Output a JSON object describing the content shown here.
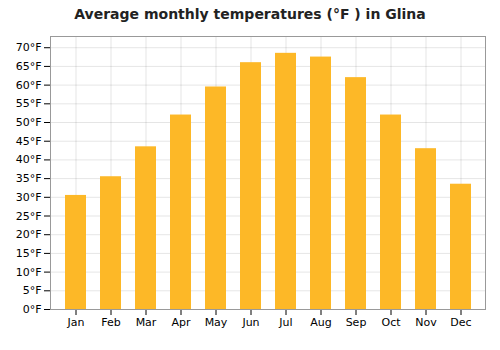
{
  "chart_data": {
    "type": "bar",
    "title": "Average monthly temperatures (°F ) in Glina",
    "categories": [
      "Jan",
      "Feb",
      "Mar",
      "Apr",
      "May",
      "Jun",
      "Jul",
      "Aug",
      "Sep",
      "Oct",
      "Nov",
      "Dec"
    ],
    "values": [
      30.5,
      35.5,
      43.5,
      52.0,
      59.5,
      66.0,
      68.5,
      67.5,
      62.0,
      52.0,
      43.0,
      33.5
    ],
    "color": "#FDB827",
    "ylim": [
      0,
      73
    ],
    "yticks": [
      {
        "value": 0,
        "label": "0°F"
      },
      {
        "value": 5,
        "label": "5°F"
      },
      {
        "value": 10,
        "label": "10°F"
      },
      {
        "value": 15,
        "label": "15°F"
      },
      {
        "value": 20,
        "label": "20°F"
      },
      {
        "value": 25,
        "label": "25°F"
      },
      {
        "value": 30,
        "label": "30°F"
      },
      {
        "value": 35,
        "label": "35°F"
      },
      {
        "value": 40,
        "label": "40°F"
      },
      {
        "value": 45,
        "label": "45°F"
      },
      {
        "value": 50,
        "label": "50°F"
      },
      {
        "value": 55,
        "label": "55°F"
      },
      {
        "value": 60,
        "label": "60°F"
      },
      {
        "value": 65,
        "label": "65°F"
      },
      {
        "value": 70,
        "label": "70°F"
      }
    ],
    "grid": true
  }
}
